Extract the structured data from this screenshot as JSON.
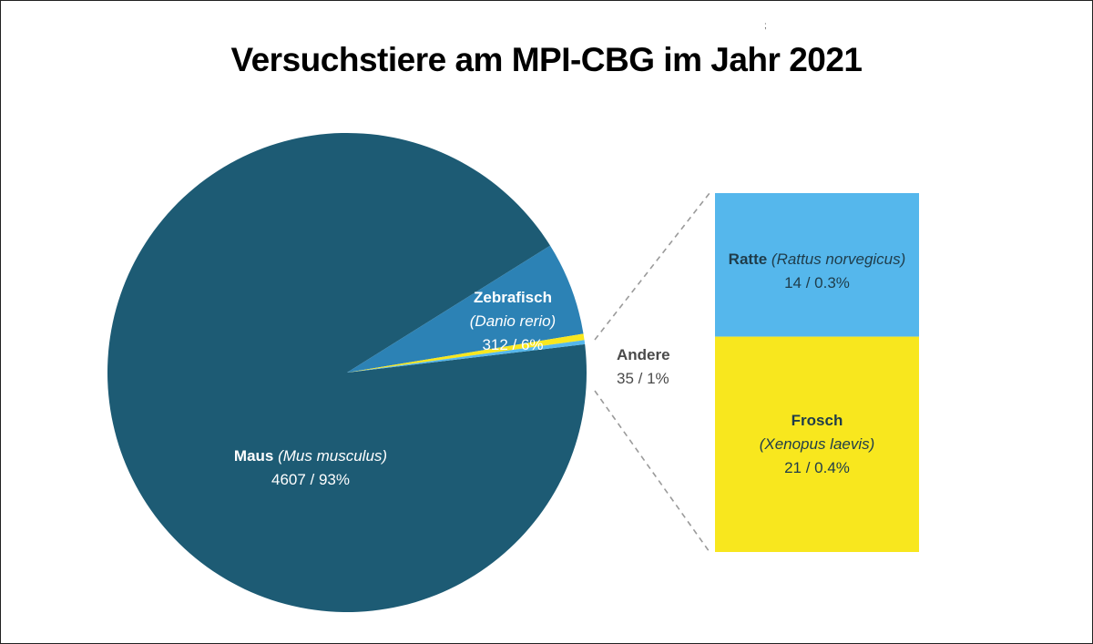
{
  "chart_data": {
    "type": "pie",
    "title": "Versuchstiere am MPI-CBG im Jahr 2021",
    "slices": [
      {
        "name": "Maus",
        "latin": "(Mus musculus)",
        "value": 4607,
        "percent": "93%",
        "label_value": "4607 / 93%",
        "color": "#1d5b74"
      },
      {
        "name": "Zebrafisch",
        "latin": "(Danio rerio)",
        "value": 312,
        "percent": "6%",
        "label_value": "312 / 6%",
        "color": "#2c82b5"
      },
      {
        "name": "Andere",
        "value": 35,
        "percent": "1%",
        "label_value": "35 / 1%",
        "colors": [
          "#f6e71f",
          "#5bb7e6"
        ]
      }
    ],
    "breakdown": {
      "of": "Andere",
      "segments": [
        {
          "name": "Ratte",
          "latin": "(Rattus norvegicus)",
          "value": 14,
          "percent": "0.3%",
          "label_value": "14 / 0.3%",
          "color": "#55b7ec"
        },
        {
          "name": "Frosch",
          "latin": "(Xenopus laevis)",
          "value": 21,
          "percent": "0.4%",
          "label_value": "21 / 0.4%",
          "color": "#f8e71e"
        }
      ]
    }
  },
  "colors": {
    "label_light": "#ffffff",
    "label_dark": "#1f3c4a",
    "andere_label": "#4a4a4a",
    "connector": "#9a9a9a"
  },
  "stray_mark": ";"
}
